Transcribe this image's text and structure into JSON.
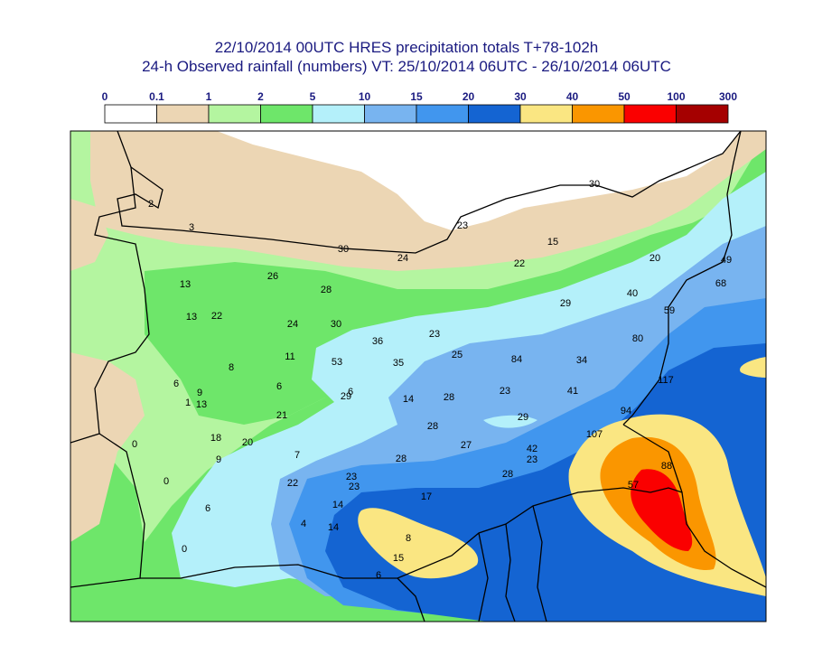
{
  "title": {
    "line1": "22/10/2014 00UTC HRES precipitation totals T+78-102h",
    "line2": "24-h Observed rainfall (numbers) VT: 25/10/2014 06UTC - 26/10/2014 06UTC"
  },
  "legend": {
    "thresholds": [
      "0",
      "0.1",
      "1",
      "2",
      "5",
      "10",
      "15",
      "20",
      "30",
      "40",
      "50",
      "100",
      "300"
    ],
    "colors": [
      "#ffffff",
      "#ecd6b4",
      "#b4f5a0",
      "#6ee66a",
      "#b4f0fa",
      "#78b4f0",
      "#4196ee",
      "#1464d2",
      "#fae682",
      "#fa9600",
      "#fa0000",
      "#a50000"
    ]
  },
  "observations": [
    {
      "v": "2"
    },
    {
      "v": "3"
    },
    {
      "v": "30"
    },
    {
      "v": "24"
    },
    {
      "v": "23"
    },
    {
      "v": "30"
    },
    {
      "v": "15"
    },
    {
      "v": "22"
    },
    {
      "v": "20"
    },
    {
      "v": "49"
    },
    {
      "v": "68"
    },
    {
      "v": "40"
    },
    {
      "v": "29"
    },
    {
      "v": "59"
    },
    {
      "v": "13"
    },
    {
      "v": "26"
    },
    {
      "v": "28"
    },
    {
      "v": "13"
    },
    {
      "v": "22"
    },
    {
      "v": "24"
    },
    {
      "v": "30"
    },
    {
      "v": "36"
    },
    {
      "v": "23"
    },
    {
      "v": "80"
    },
    {
      "v": "53"
    },
    {
      "v": "35"
    },
    {
      "v": "25"
    },
    {
      "v": "84"
    },
    {
      "v": "34"
    },
    {
      "v": "11"
    },
    {
      "v": "8"
    },
    {
      "v": "6"
    },
    {
      "v": "9"
    },
    {
      "v": "6"
    },
    {
      "v": "29"
    },
    {
      "v": "6"
    },
    {
      "v": "14"
    },
    {
      "v": "28"
    },
    {
      "v": "23"
    },
    {
      "v": "41"
    },
    {
      "v": "117"
    },
    {
      "v": "1"
    },
    {
      "v": "13"
    },
    {
      "v": "21"
    },
    {
      "v": "29"
    },
    {
      "v": "94"
    },
    {
      "v": "28"
    },
    {
      "v": "107"
    },
    {
      "v": "0"
    },
    {
      "v": "18"
    },
    {
      "v": "20"
    },
    {
      "v": "27"
    },
    {
      "v": "42"
    },
    {
      "v": "9"
    },
    {
      "v": "7"
    },
    {
      "v": "28"
    },
    {
      "v": "23"
    },
    {
      "v": "88"
    },
    {
      "v": "0"
    },
    {
      "v": "22"
    },
    {
      "v": "23"
    },
    {
      "v": "23"
    },
    {
      "v": "28"
    },
    {
      "v": "57"
    },
    {
      "v": "17"
    },
    {
      "v": "6"
    },
    {
      "v": "14"
    },
    {
      "v": "4"
    },
    {
      "v": "14"
    },
    {
      "v": "8"
    },
    {
      "v": "0"
    },
    {
      "v": "15"
    },
    {
      "v": "6"
    }
  ]
}
